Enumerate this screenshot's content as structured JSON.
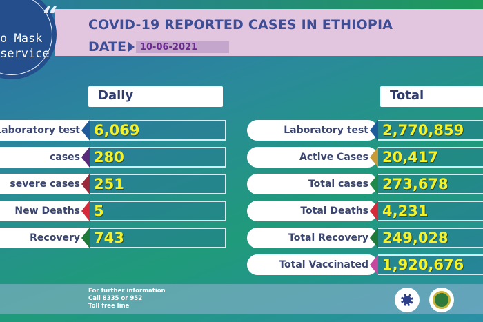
{
  "header": {
    "title": "COVID-19 REPORTED CASES IN ETHIOPIA",
    "date_label": "DATE",
    "date_value": "10-06-2021"
  },
  "badge": {
    "line1": "o Mask",
    "line2": "service",
    "quote": "“"
  },
  "daily": {
    "heading": "Daily",
    "rows": [
      {
        "label": "Laboratory test",
        "value": "6,069",
        "color": "#1f5a9a"
      },
      {
        "label": "cases",
        "value": "280",
        "color": "#5a2a7a"
      },
      {
        "label": "severe cases",
        "value": "251",
        "color": "#9a2a3a"
      },
      {
        "label": "New Deaths",
        "value": "5",
        "color": "#d42a3a"
      },
      {
        "label": "Recovery",
        "value": "743",
        "color": "#1f7a3a"
      }
    ]
  },
  "total": {
    "heading": "Total",
    "rows": [
      {
        "label": "Laboratory test",
        "value": "2,770,859",
        "color": "#1f5a9a"
      },
      {
        "label": "Active Cases",
        "value": "20,417",
        "color": "#c89a3a"
      },
      {
        "label": "Total cases",
        "value": "273,678",
        "color": "#1f8a4a"
      },
      {
        "label": "Total Deaths",
        "value": "4,231",
        "color": "#d42a3a"
      },
      {
        "label": "Total Recovery",
        "value": "249,028",
        "color": "#1f7a3a"
      },
      {
        "label": "Total Vaccinated",
        "value": "1,920,676",
        "color": "#c84aa0"
      }
    ]
  },
  "footer": {
    "line1": "For further information",
    "line2": "Call 8335 or 952",
    "line3": "Toll free line"
  }
}
